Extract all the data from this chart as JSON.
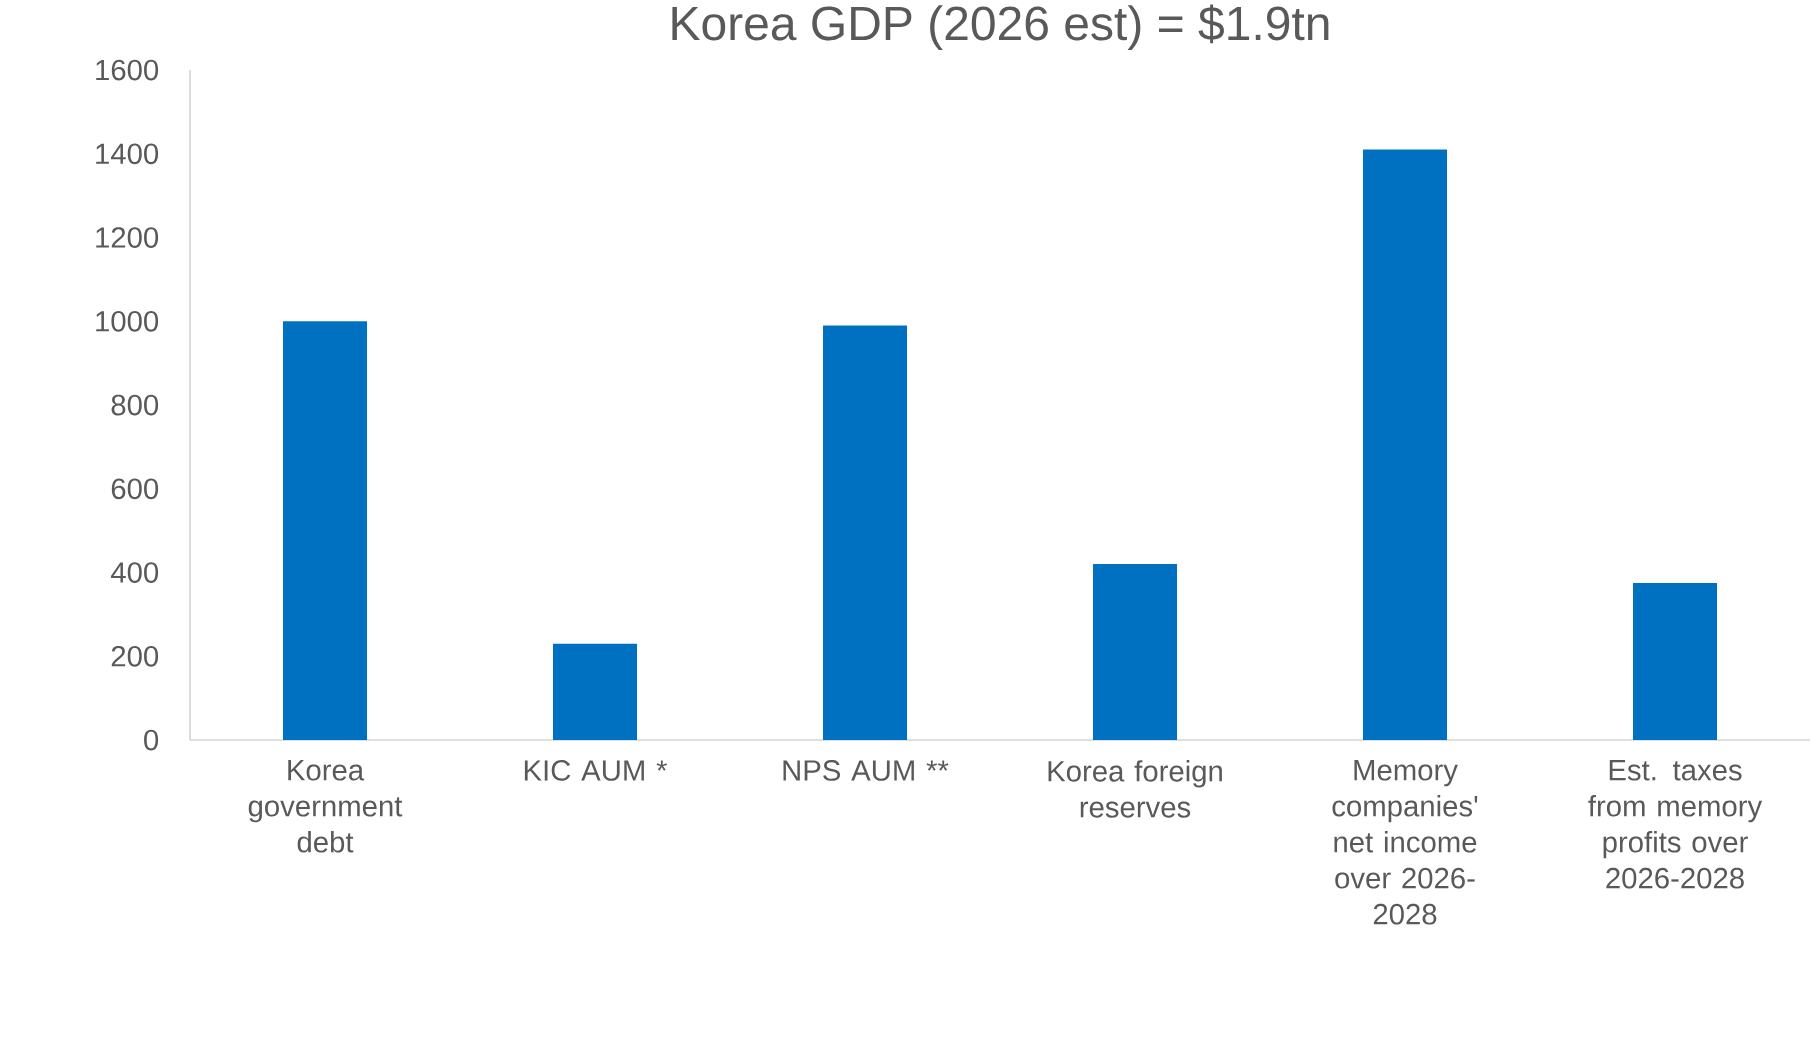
{
  "chart_data": {
    "type": "bar",
    "title": "Korea GDP (2026 est) = $1.9tn",
    "categories": [
      "Korea government debt",
      "KIC AUM *",
      "NPS AUM **",
      "Korea foreign reserves",
      "Memory companies' net income over 2026-2028",
      "Est. taxes from memory profits over 2026-2028"
    ],
    "values": [
      1000,
      230,
      990,
      420,
      1410,
      375
    ],
    "color": "#0070c0",
    "ylim": [
      0,
      1600
    ],
    "yticks": [
      0,
      200,
      400,
      600,
      800,
      1000,
      1200,
      1400,
      1600
    ],
    "grid": false
  }
}
